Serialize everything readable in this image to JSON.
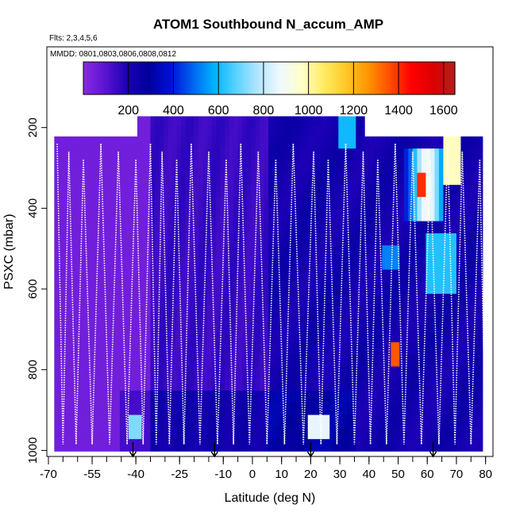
{
  "chart_data": {
    "type": "heatmap",
    "title": "ATOM1 Southbound N_accum_AMP",
    "subtitle_flights": "Flts: 2,3,4,5,6",
    "subtitle_dates": "MMDD: 0801,0803,0806,0808,0812",
    "xlabel": "Latitude (deg N)",
    "ylabel": "PSXC (mbar)",
    "xlim": [
      -70,
      82
    ],
    "ylim": [
      1015,
      0
    ],
    "x_ticks": [
      -70,
      -55,
      -40,
      -25,
      -10,
      0,
      10,
      20,
      30,
      40,
      50,
      60,
      70,
      80
    ],
    "x_tick_labels": [
      "-70",
      "-55",
      "-40",
      "-25",
      "-10",
      "0",
      "10",
      "20",
      "30",
      "40",
      "50",
      "60",
      "70",
      "80"
    ],
    "y_ticks": [
      200,
      400,
      600,
      800,
      1000
    ],
    "y_tick_labels": [
      "200",
      "400",
      "600",
      "800",
      "1000"
    ],
    "colorbar": {
      "range": [
        0,
        1650
      ],
      "ticks": [
        200,
        400,
        600,
        800,
        1000,
        1200,
        1400,
        1600
      ],
      "tick_labels": [
        "200",
        "400",
        "600",
        "800",
        "1000",
        "1200",
        "1400",
        "1600"
      ],
      "colors": [
        "#8a2be2",
        "#5a14d2",
        "#1a00b4",
        "#00009c",
        "#0010d8",
        "#0064f0",
        "#00b4ff",
        "#5ad2ff",
        "#b4e6ff",
        "#f0f8ff",
        "#ffffc8",
        "#ffeb64",
        "#ffc828",
        "#ff9600",
        "#ff5000",
        "#ff0000",
        "#dc0000",
        "#b41e1e"
      ]
    },
    "grid": false,
    "legend": "none",
    "flight_markers_lat": [
      -41,
      -13,
      20,
      62
    ],
    "profile_tops_lat": [
      -67,
      -63,
      -58,
      -52,
      -46,
      -40,
      -35,
      -31,
      -26,
      -21,
      -15,
      -9,
      -4,
      2,
      8,
      14,
      21,
      26,
      32,
      38,
      43,
      49,
      55,
      61,
      67,
      72,
      78
    ]
  }
}
